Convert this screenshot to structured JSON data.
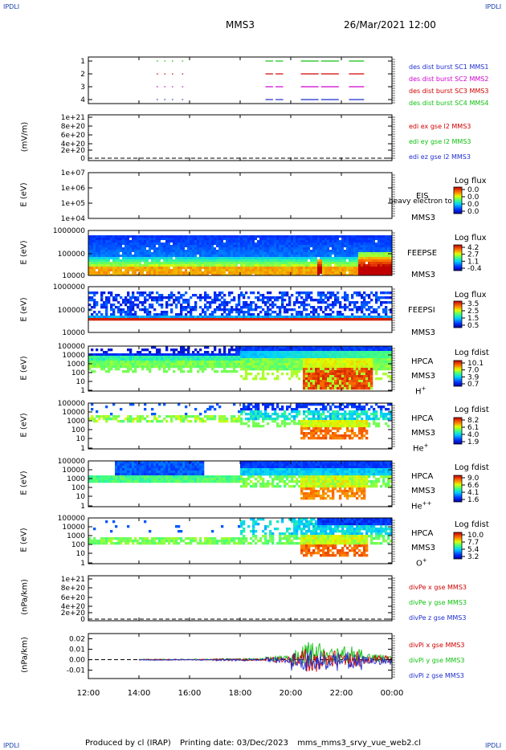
{
  "corners": {
    "tl": "IPDLI",
    "tr": "IPDLI",
    "bl": "IPDLI",
    "br": "IPDLI"
  },
  "header": {
    "spacecraft": "MMS3",
    "datetime": "26/Mar/2021 12:00"
  },
  "footer": {
    "produced": "Produced by cl (IRAP)",
    "printing": "Printing date: 03/Dec/2023",
    "script": "mms_mms3_srvy_vue_web2.cl"
  },
  "colors": {
    "blue": "#1f2fd0",
    "magenta": "#d000d0",
    "red": "#d00000",
    "green": "#10c010",
    "black": "#000000"
  },
  "chart_data": [
    {
      "type": "scatter",
      "panel": "burst",
      "y_ticks": [
        "1",
        "2",
        "3",
        "4"
      ],
      "legend": [
        "des dist burst SC1 MMS1",
        "des dist burst SC2 MMS2",
        "des dist burst SC3 MMS3",
        "des dist burst SC4 MMS4"
      ],
      "legend_colors": [
        "#1f2fd0",
        "#d000d0",
        "#d00000",
        "#10c010"
      ],
      "segments_hours": [
        [
          14.7,
          14.75
        ],
        [
          15.0,
          15.05
        ],
        [
          15.3,
          15.35
        ],
        [
          15.7,
          15.75
        ],
        [
          19.0,
          19.3
        ],
        [
          19.4,
          19.7
        ],
        [
          20.4,
          21.1
        ],
        [
          21.2,
          21.9
        ],
        [
          22.3,
          22.9
        ]
      ]
    },
    {
      "type": "line",
      "panel": "edi",
      "ylabel": "(mV/m)",
      "y_ticks": [
        "1e+21",
        "8e+20",
        "6e+20",
        "4e+20",
        "2e+20",
        "0"
      ],
      "legend": [
        "edi ex gse l2 MMS3",
        "edi ey gse l2 MMS3",
        "edi ez gse l2 MMS3"
      ],
      "legend_colors": [
        "#d00000",
        "#10c010",
        "#1f2fd0"
      ]
    },
    {
      "type": "heatmap",
      "panel": "eis",
      "ylabel": "E (eV)",
      "y_ticks": [
        "1e+07",
        "1e+06",
        "1e+05",
        "1e+04"
      ],
      "instrument": "EIS",
      "instrument_extra": "heavy electron to",
      "sc": "MMS3",
      "cb_title": "Log flux",
      "cb_ticks": [
        "0.0",
        "0.0",
        "0.0",
        "0.0"
      ]
    },
    {
      "type": "heatmap",
      "panel": "feepse",
      "ylabel": "E (eV)",
      "y_ticks": [
        "1000000",
        "100000",
        "10000"
      ],
      "instrument": "FEEPSE",
      "sc": "MMS3",
      "cb_title": "Log flux",
      "cb_ticks": [
        "4.2",
        "2.7",
        "1.1",
        "-0.4"
      ]
    },
    {
      "type": "heatmap",
      "panel": "feepsi",
      "ylabel": "E (eV)",
      "y_ticks": [
        "1000000",
        "100000",
        "10000"
      ],
      "instrument": "FEEPSI",
      "sc": "MMS3",
      "cb_title": "Log flux",
      "cb_ticks": [
        "3.5",
        "2.5",
        "1.5",
        "0.5"
      ]
    },
    {
      "type": "heatmap",
      "panel": "hpca_h",
      "ylabel": "E (eV)",
      "y_ticks": [
        "100000",
        "10000",
        "1000",
        "100",
        "10",
        "1"
      ],
      "instrument": "HPCA",
      "sc": "MMS3",
      "ion": "H",
      "ion_sup": "+",
      "cb_title": "Log fdist",
      "cb_ticks": [
        "10.1",
        "7.0",
        "3.9",
        "0.7"
      ]
    },
    {
      "type": "heatmap",
      "panel": "hpca_he",
      "ylabel": "E (eV)",
      "y_ticks": [
        "100000",
        "10000",
        "1000",
        "100",
        "10",
        "1"
      ],
      "instrument": "HPCA",
      "sc": "MMS3",
      "ion": "He",
      "ion_sup": "+",
      "cb_title": "Log fdist",
      "cb_ticks": [
        "8.2",
        "6.1",
        "4.0",
        "1.9"
      ]
    },
    {
      "type": "heatmap",
      "panel": "hpca_hepp",
      "ylabel": "E (eV)",
      "y_ticks": [
        "100000",
        "10000",
        "1000",
        "100",
        "10",
        "1"
      ],
      "instrument": "HPCA",
      "sc": "MMS3",
      "ion": "He",
      "ion_sup": "++",
      "cb_title": "Log fdist",
      "cb_ticks": [
        "9.0",
        "6.6",
        "4.1",
        "1.6"
      ]
    },
    {
      "type": "heatmap",
      "panel": "hpca_o",
      "ylabel": "E (eV)",
      "y_ticks": [
        "100000",
        "10000",
        "1000",
        "100",
        "10",
        "1"
      ],
      "instrument": "HPCA",
      "sc": "MMS3",
      "ion": "O",
      "ion_sup": "+",
      "cb_title": "Log fdist",
      "cb_ticks": [
        "10.0",
        "7.7",
        "5.4",
        "3.2"
      ]
    },
    {
      "type": "line",
      "panel": "divpe",
      "ylabel": "(nPa/km)",
      "y_ticks": [
        "1e+21",
        "8e+20",
        "6e+20",
        "4e+20",
        "2e+20",
        "0"
      ],
      "legend": [
        "divPe x gse MMS3",
        "divPe y gse MMS3",
        "divPe z gse MMS3"
      ],
      "legend_colors": [
        "#d00000",
        "#10c010",
        "#1f2fd0"
      ]
    },
    {
      "type": "line",
      "panel": "divpi",
      "ylabel": "(nPa/km)",
      "y_ticks": [
        "0.02",
        "0.01",
        "0.00",
        "-0.01"
      ],
      "ylim": [
        -0.018,
        0.025
      ],
      "legend": [
        "divPi x gse MMS3",
        "divPi y gse MMS3",
        "divPi z gse MMS3"
      ],
      "legend_colors": [
        "#d00000",
        "#10c010",
        "#1f2fd0"
      ]
    }
  ],
  "x_ticks": [
    "12:00",
    "14:00",
    "16:00",
    "18:00",
    "20:00",
    "22:00",
    "00:00"
  ]
}
